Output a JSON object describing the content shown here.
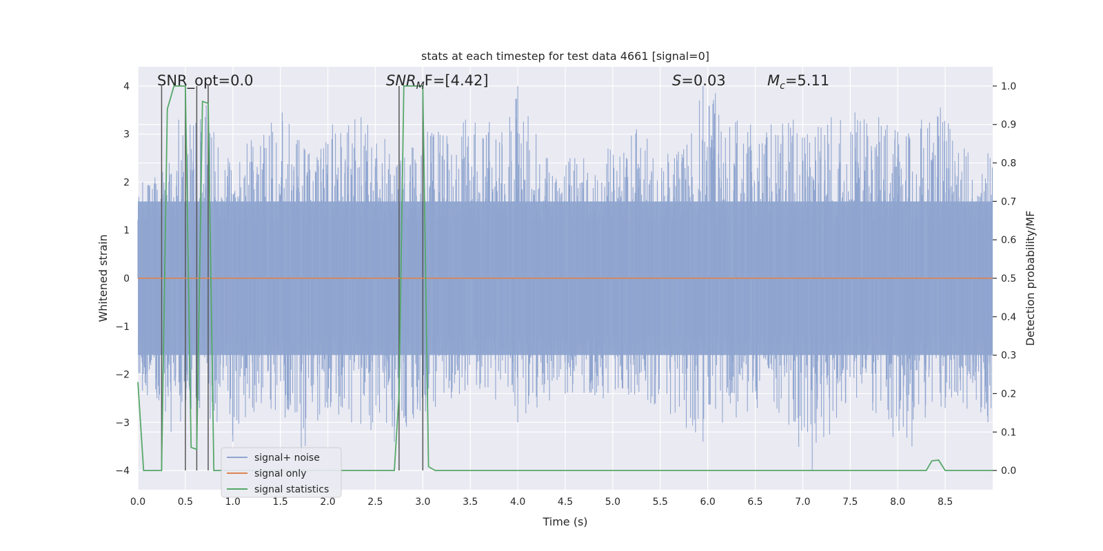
{
  "chart_data": {
    "type": "line",
    "title": "stats at each timestep for test data 4661 [signal=0]",
    "xlabel": "Time (s)",
    "ylabel": "Whitened strain",
    "y2label": "Detection probability/MF",
    "xlim": [
      0.0,
      9.0
    ],
    "ylim": [
      -4.4,
      4.4
    ],
    "y2lim": [
      -0.05,
      1.05
    ],
    "xticks": [
      0.0,
      0.5,
      1.0,
      1.5,
      2.0,
      2.5,
      3.0,
      3.5,
      4.0,
      4.5,
      5.0,
      5.5,
      6.0,
      6.5,
      7.0,
      7.5,
      8.0,
      8.5
    ],
    "xtick_labels": [
      "0.0",
      "0.5",
      "1.0",
      "1.5",
      "2.0",
      "2.5",
      "3.0",
      "3.5",
      "4.0",
      "4.5",
      "5.0",
      "5.5",
      "6.0",
      "6.5",
      "7.0",
      "7.5",
      "8.0",
      "8.5"
    ],
    "yticks": [
      -4,
      -3,
      -2,
      -1,
      0,
      1,
      2,
      3,
      4
    ],
    "ytick_labels": [
      "−4",
      "−3",
      "−2",
      "−1",
      "0",
      "1",
      "2",
      "3",
      "4"
    ],
    "y2ticks": [
      0.0,
      0.1,
      0.2,
      0.3,
      0.4,
      0.5,
      0.6,
      0.7,
      0.8,
      0.9,
      1.0
    ],
    "y2tick_labels": [
      "0.0",
      "0.1",
      "0.2",
      "0.3",
      "0.4",
      "0.5",
      "0.6",
      "0.7",
      "0.8",
      "0.9",
      "1.0"
    ],
    "grid": true,
    "legend_position": "lower-left",
    "annotations": {
      "snr_opt": "SNR_opt=0.0",
      "snr_mf_name": "SNR",
      "snr_mf_sub": "M",
      "snr_mf_suffix": "F=[4.42]",
      "s_name": "S",
      "s_value": "=0.03",
      "mc_name": "M",
      "mc_sub": "c",
      "mc_value": "=5.11"
    },
    "series": [
      {
        "name": "signal+ noise",
        "color": "#8fa5cf",
        "kind": "noise",
        "envelope_peaks": [
          [
            0.05,
            2.0
          ],
          [
            0.18,
            2.1
          ],
          [
            0.33,
            2.4
          ],
          [
            0.43,
            3.3
          ],
          [
            0.55,
            3.2
          ],
          [
            0.72,
            3.6
          ],
          [
            0.95,
            2.5
          ],
          [
            1.15,
            2.8
          ],
          [
            1.52,
            3.45
          ],
          [
            1.75,
            2.7
          ],
          [
            2.05,
            3.2
          ],
          [
            2.35,
            3.35
          ],
          [
            2.6,
            2.9
          ],
          [
            2.75,
            2.6
          ],
          [
            3.05,
            3.05
          ],
          [
            3.45,
            3.3
          ],
          [
            3.7,
            3.25
          ],
          [
            4.0,
            4.0
          ],
          [
            4.3,
            2.5
          ],
          [
            4.55,
            2.5
          ],
          [
            4.95,
            2.7
          ],
          [
            5.25,
            3.1
          ],
          [
            5.65,
            2.5
          ],
          [
            5.95,
            4.0
          ],
          [
            6.08,
            3.85
          ],
          [
            6.45,
            3.2
          ],
          [
            6.9,
            3.3
          ],
          [
            7.05,
            3.0
          ],
          [
            7.3,
            3.35
          ],
          [
            7.55,
            3.45
          ],
          [
            7.8,
            3.35
          ],
          [
            8.0,
            3.05
          ],
          [
            8.25,
            3.3
          ],
          [
            8.45,
            3.55
          ],
          [
            8.7,
            2.7
          ],
          [
            8.95,
            2.6
          ]
        ],
        "envelope_troughs": [
          [
            0.2,
            -2.5
          ],
          [
            0.35,
            -3.2
          ],
          [
            0.65,
            -2.7
          ],
          [
            1.0,
            -3.4
          ],
          [
            1.3,
            -2.6
          ],
          [
            1.55,
            -2.9
          ],
          [
            1.72,
            -3.7
          ],
          [
            2.0,
            -2.7
          ],
          [
            2.25,
            -3.0
          ],
          [
            2.7,
            -3.4
          ],
          [
            3.0,
            -2.9
          ],
          [
            3.3,
            -2.5
          ],
          [
            3.6,
            -2.3
          ],
          [
            4.0,
            -3.0
          ],
          [
            4.5,
            -2.4
          ],
          [
            4.9,
            -2.5
          ],
          [
            5.4,
            -2.6
          ],
          [
            5.95,
            -3.4
          ],
          [
            6.3,
            -2.9
          ],
          [
            6.75,
            -2.8
          ],
          [
            7.1,
            -4.0
          ],
          [
            7.45,
            -2.6
          ],
          [
            7.95,
            -3.3
          ],
          [
            8.15,
            -3.5
          ],
          [
            8.5,
            -2.7
          ],
          [
            8.95,
            -3.0
          ]
        ]
      },
      {
        "name": "signal only",
        "color": "#dd8452",
        "kind": "line",
        "x": [
          0.0,
          9.0
        ],
        "y": [
          0.0,
          0.0
        ]
      },
      {
        "name": "signal statistics",
        "color": "#55a868",
        "kind": "line",
        "axis": "right",
        "x": [
          0.0,
          0.06,
          0.25,
          0.31,
          0.38,
          0.5,
          0.56,
          0.62,
          0.68,
          0.74,
          0.8,
          2.7,
          2.75,
          2.8,
          3.0,
          3.06,
          3.13,
          8.3,
          8.36,
          8.43,
          8.5,
          9.0
        ],
        "y": [
          0.23,
          0.0,
          0.0,
          0.94,
          1.0,
          1.0,
          0.06,
          0.055,
          0.96,
          0.955,
          0.0,
          0.0,
          0.2,
          1.0,
          1.0,
          0.01,
          0.0,
          0.0,
          0.025,
          0.027,
          0.0,
          0.0
        ]
      }
    ],
    "vertical_markers": [
      0.25,
      0.5,
      0.62,
      0.74,
      2.75,
      3.0
    ]
  }
}
